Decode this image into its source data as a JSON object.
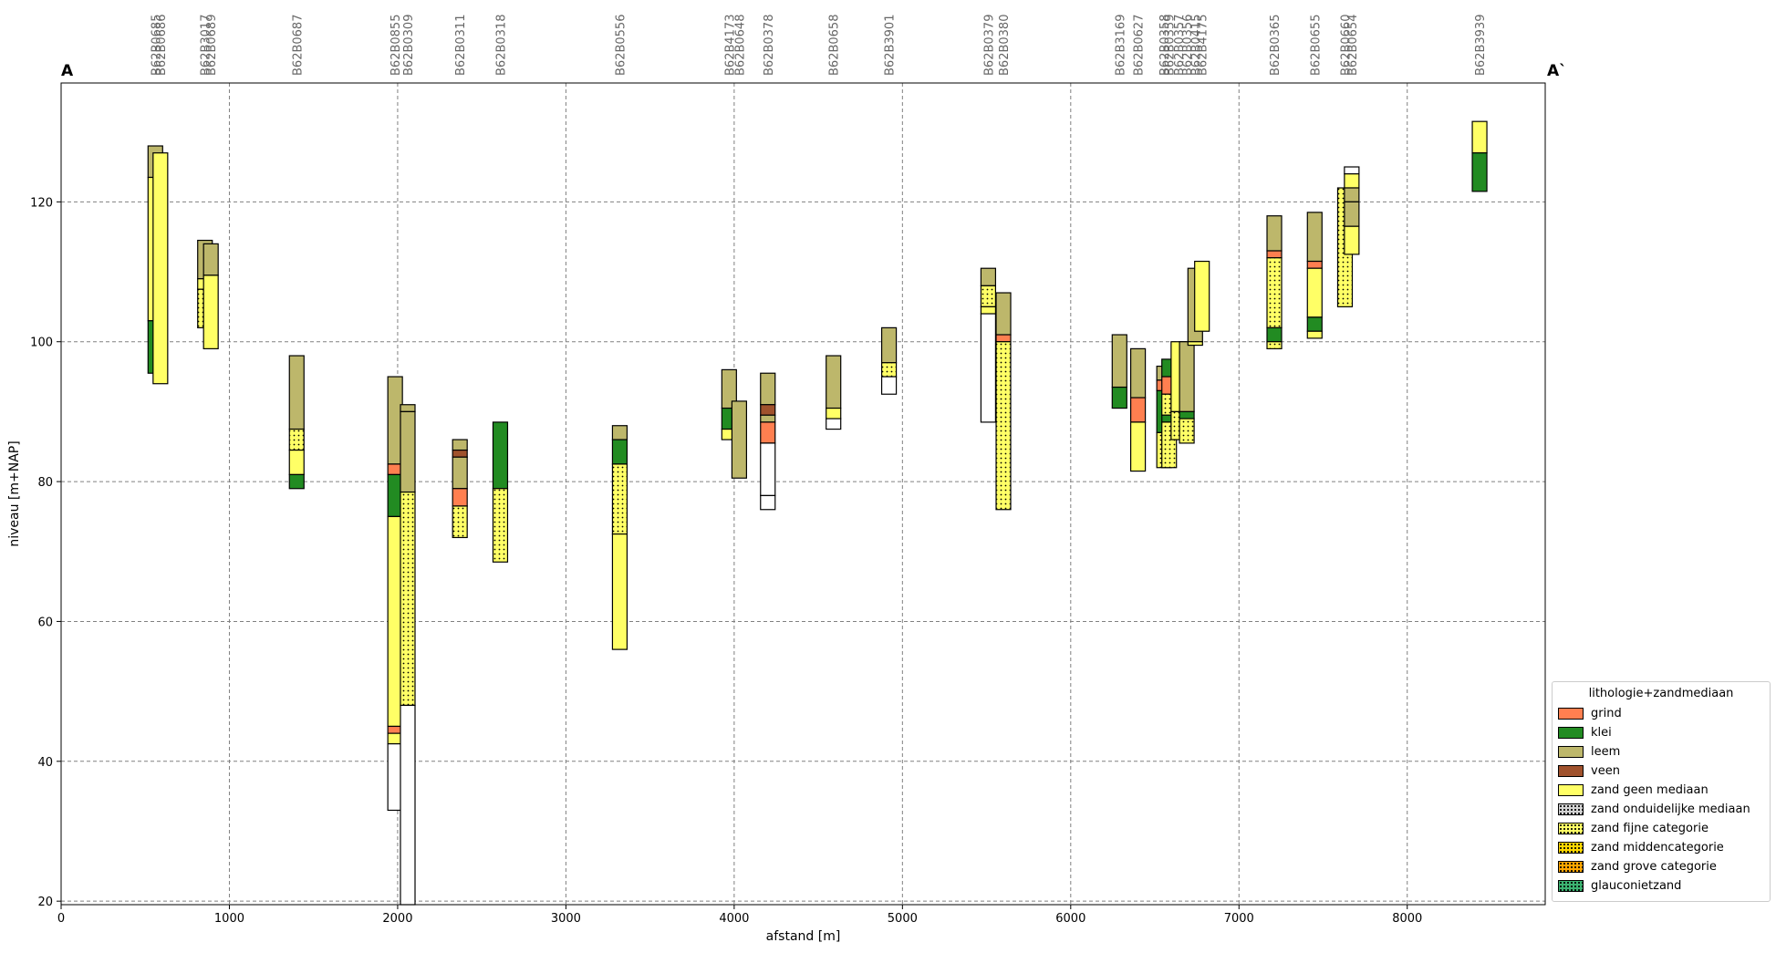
{
  "chart_data": {
    "type": "bar",
    "xlabel": "afstand [m]",
    "ylabel": "niveau [m+NAP]",
    "xlim": [
      0,
      8820
    ],
    "ylim": [
      19.5,
      137
    ],
    "xticks": [
      0,
      1000,
      2000,
      3000,
      4000,
      5000,
      6000,
      7000,
      8000
    ],
    "yticks": [
      20,
      40,
      60,
      80,
      100,
      120
    ],
    "grid": true,
    "start_label": "A",
    "end_label": "A`",
    "legend": {
      "title": "lithologie+zandmediaan",
      "placement": "lower-right",
      "items": [
        {
          "key": "grind",
          "label": "grind",
          "color": "#ff7f50",
          "pattern": "none"
        },
        {
          "key": "klei",
          "label": "klei",
          "color": "#228b22",
          "pattern": "none"
        },
        {
          "key": "leem",
          "label": "leem",
          "color": "#bdb76b",
          "pattern": "none"
        },
        {
          "key": "veen",
          "label": "veen",
          "color": "#a0522d",
          "pattern": "none"
        },
        {
          "key": "zgm",
          "label": "zand geen mediaan",
          "color": "#ffff66",
          "pattern": "none"
        },
        {
          "key": "zom",
          "label": "zand onduidelijke mediaan",
          "color": "#d3d3d3",
          "pattern": "dots"
        },
        {
          "key": "zfc",
          "label": "zand fijne categorie",
          "color": "#ffff66",
          "pattern": "dots"
        },
        {
          "key": "zmc",
          "label": "zand middencategorie",
          "color": "#ffd700",
          "pattern": "dots"
        },
        {
          "key": "zgc",
          "label": "zand grove categorie",
          "color": "#ffa500",
          "pattern": "dots"
        },
        {
          "key": "glauc",
          "label": "glauconietzand",
          "color": "#3cb371",
          "pattern": "dots"
        },
        {
          "key": "onb",
          "label": "",
          "color": "#ffffff",
          "pattern": "none"
        }
      ]
    },
    "boreholes": [
      {
        "name": "B62B0685",
        "x": 560,
        "layers": [
          [
            128,
            123.5,
            "leem"
          ],
          [
            123.5,
            103,
            "zgm"
          ],
          [
            103,
            95.5,
            "klei"
          ]
        ]
      },
      {
        "name": "B62B0686",
        "x": 590,
        "layers": [
          [
            127,
            94,
            "zgm"
          ]
        ]
      },
      {
        "name": "B62B3017",
        "x": 855,
        "layers": [
          [
            114.5,
            109,
            "leem"
          ],
          [
            109,
            107.5,
            "zgm"
          ],
          [
            107.5,
            102,
            "zfc"
          ]
        ]
      },
      {
        "name": "B62B0689",
        "x": 890,
        "layers": [
          [
            114,
            109.5,
            "leem"
          ],
          [
            109.5,
            99,
            "zgm"
          ]
        ]
      },
      {
        "name": "B62B0687",
        "x": 1400,
        "layers": [
          [
            98,
            87.5,
            "leem"
          ],
          [
            87.5,
            84.5,
            "zfc"
          ],
          [
            84.5,
            81,
            "zgm"
          ],
          [
            81,
            79,
            "klei"
          ]
        ]
      },
      {
        "name": "B62B0855",
        "x": 1985,
        "layers": [
          [
            95,
            82.5,
            "leem"
          ],
          [
            82.5,
            81,
            "grind"
          ],
          [
            81,
            75,
            "klei"
          ],
          [
            75,
            45,
            "zgm"
          ],
          [
            45,
            44,
            "grind"
          ],
          [
            44,
            42.5,
            "zgm"
          ],
          [
            42.5,
            33,
            "onb"
          ]
        ]
      },
      {
        "name": "B62B0309",
        "x": 2060,
        "layers": [
          [
            91,
            90,
            "leem"
          ],
          [
            90,
            78.5,
            "leem"
          ],
          [
            78.5,
            48,
            "zfc"
          ],
          [
            48,
            19.5,
            "onb"
          ]
        ]
      },
      {
        "name": "B62B0311",
        "x": 2370,
        "layers": [
          [
            86,
            84.5,
            "leem"
          ],
          [
            84.5,
            83.5,
            "veen"
          ],
          [
            83.5,
            79,
            "leem"
          ],
          [
            79,
            76.5,
            "grind"
          ],
          [
            76.5,
            72,
            "zfc"
          ]
        ]
      },
      {
        "name": "B62B0318",
        "x": 2610,
        "layers": [
          [
            88.5,
            79,
            "klei"
          ],
          [
            79,
            68.5,
            "zfc"
          ]
        ]
      },
      {
        "name": "B62B0556",
        "x": 3320,
        "layers": [
          [
            88,
            86,
            "leem"
          ],
          [
            86,
            82.5,
            "klei"
          ],
          [
            82.5,
            72.5,
            "zfc"
          ],
          [
            72.5,
            56,
            "zgm"
          ]
        ]
      },
      {
        "name": "B62B4173",
        "x": 3970,
        "layers": [
          [
            96,
            90.5,
            "leem"
          ],
          [
            90.5,
            87.5,
            "klei"
          ],
          [
            87.5,
            86,
            "zgm"
          ]
        ]
      },
      {
        "name": "B62B0648",
        "x": 4030,
        "layers": [
          [
            91.5,
            80.5,
            "leem"
          ]
        ]
      },
      {
        "name": "B62B0378",
        "x": 4200,
        "layers": [
          [
            95.5,
            91,
            "leem"
          ],
          [
            91,
            89.5,
            "veen"
          ],
          [
            89.5,
            88.5,
            "leem"
          ],
          [
            88.5,
            85.5,
            "grind"
          ],
          [
            85.5,
            78,
            "onb"
          ],
          [
            78,
            76,
            "onb"
          ]
        ]
      },
      {
        "name": "B62B0658",
        "x": 4590,
        "layers": [
          [
            98,
            90.5,
            "leem"
          ],
          [
            90.5,
            89,
            "zgm"
          ],
          [
            89,
            87.5,
            "onb"
          ]
        ]
      },
      {
        "name": "B62B3901",
        "x": 4920,
        "layers": [
          [
            102,
            97,
            "leem"
          ],
          [
            97,
            95,
            "zfc"
          ],
          [
            95,
            92.5,
            "onb"
          ]
        ]
      },
      {
        "name": "B62B0379",
        "x": 5510,
        "layers": [
          [
            110.5,
            108,
            "leem"
          ],
          [
            108,
            105,
            "zfc"
          ],
          [
            105,
            104,
            "zgm"
          ],
          [
            104,
            88.5,
            "onb"
          ]
        ]
      },
      {
        "name": "B62B0380",
        "x": 5600,
        "layers": [
          [
            107,
            101,
            "leem"
          ],
          [
            101,
            100,
            "grind"
          ],
          [
            100,
            76,
            "zfc"
          ]
        ]
      },
      {
        "name": "B62B3169",
        "x": 6290,
        "layers": [
          [
            101,
            93.5,
            "leem"
          ],
          [
            93.5,
            90.5,
            "klei"
          ]
        ]
      },
      {
        "name": "B62B0627",
        "x": 6400,
        "layers": [
          [
            99,
            92,
            "leem"
          ],
          [
            92,
            88.5,
            "grind"
          ],
          [
            88.5,
            81.5,
            "zgm"
          ]
        ]
      },
      {
        "name": "B62B0358",
        "x": 6555,
        "layers": [
          [
            96.5,
            94.5,
            "leem"
          ],
          [
            94.5,
            93,
            "grind"
          ],
          [
            93,
            87,
            "klei"
          ],
          [
            87,
            82,
            "zfc"
          ]
        ]
      },
      {
        "name": "B62B0359",
        "x": 6585,
        "layers": [
          [
            97.5,
            95,
            "klei"
          ],
          [
            95,
            92.5,
            "grind"
          ],
          [
            92.5,
            89.5,
            "zfc"
          ],
          [
            89.5,
            88.5,
            "klei"
          ],
          [
            88.5,
            82,
            "zfc"
          ]
        ]
      },
      {
        "name": "B62B0357",
        "x": 6640,
        "layers": [
          [
            100,
            90,
            "zgm"
          ],
          [
            90,
            86,
            "zfc"
          ]
        ]
      },
      {
        "name": "B62B0356",
        "x": 6690,
        "layers": [
          [
            100,
            90,
            "leem"
          ],
          [
            90,
            89,
            "klei"
          ],
          [
            89,
            85.5,
            "zfc"
          ]
        ]
      },
      {
        "name": "B62B0415",
        "x": 6740,
        "layers": [
          [
            110.5,
            100,
            "leem"
          ],
          [
            100,
            99.5,
            "zgm"
          ]
        ]
      },
      {
        "name": "B62B4175",
        "x": 6780,
        "layers": [
          [
            111.5,
            101.5,
            "zgm"
          ]
        ]
      },
      {
        "name": "B62B0365",
        "x": 7210,
        "layers": [
          [
            118,
            113,
            "leem"
          ],
          [
            113,
            112,
            "grind"
          ],
          [
            112,
            102,
            "zfc"
          ],
          [
            102,
            100,
            "klei"
          ],
          [
            100,
            99,
            "zfc"
          ]
        ]
      },
      {
        "name": "B62B0655",
        "x": 7450,
        "layers": [
          [
            118.5,
            111.5,
            "leem"
          ],
          [
            111.5,
            110.5,
            "grind"
          ],
          [
            110.5,
            103.5,
            "zgm"
          ],
          [
            103.5,
            101.5,
            "klei"
          ],
          [
            101.5,
            100.5,
            "zgm"
          ]
        ]
      },
      {
        "name": "B62B0660",
        "x": 7630,
        "layers": [
          [
            122,
            105,
            "zfc"
          ]
        ]
      },
      {
        "name": "B62B0654",
        "x": 7670,
        "layers": [
          [
            125,
            124,
            "onb"
          ],
          [
            124,
            122,
            "zgm"
          ],
          [
            122,
            120,
            "leem"
          ],
          [
            120,
            116.5,
            "leem"
          ],
          [
            116.5,
            112.5,
            "zgm"
          ]
        ]
      },
      {
        "name": "B62B3939",
        "x": 8430,
        "layers": [
          [
            131.5,
            127,
            "zgm"
          ],
          [
            127,
            121.5,
            "klei"
          ]
        ]
      }
    ]
  }
}
